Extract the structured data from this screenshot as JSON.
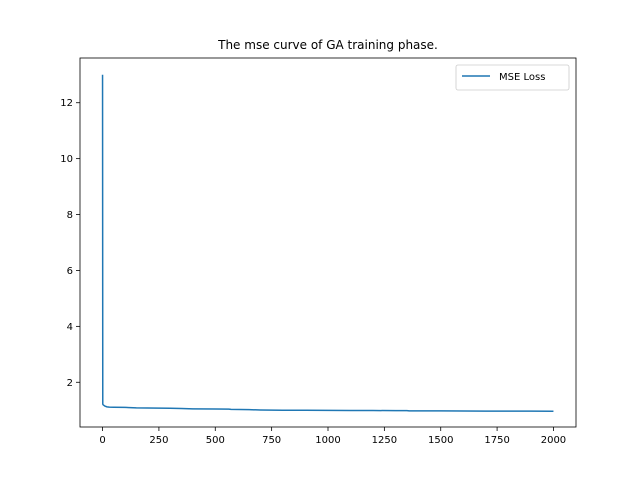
{
  "chart_data": {
    "type": "line",
    "title": "The mse curve of GA training phase.",
    "xlabel": "",
    "ylabel": "",
    "xlim": [
      -100,
      2100
    ],
    "ylim": [
      0.4,
      13.6
    ],
    "xticks": [
      0,
      250,
      500,
      750,
      1000,
      1250,
      1500,
      1750,
      2000
    ],
    "yticks": [
      2,
      4,
      6,
      8,
      10,
      12
    ],
    "grid": false,
    "legend_position": "top-right",
    "colors": {
      "series": "#1f77b4",
      "axis": "#000000",
      "legend_border": "#cccccc"
    },
    "series": [
      {
        "name": "MSE Loss",
        "x": [
          0,
          1,
          2,
          5,
          10,
          20,
          30,
          50,
          100,
          150,
          200,
          250,
          300,
          350,
          400,
          500,
          560,
          570,
          650,
          700,
          750,
          800,
          900,
          1000,
          1100,
          1200,
          1300,
          1350,
          1360,
          1400,
          1500,
          1600,
          1700,
          1800,
          1900,
          2000
        ],
        "y": [
          13.0,
          1.22,
          1.2,
          1.18,
          1.15,
          1.12,
          1.11,
          1.105,
          1.1,
          1.085,
          1.08,
          1.075,
          1.07,
          1.06,
          1.05,
          1.045,
          1.04,
          1.03,
          1.02,
          1.01,
          1.005,
          1.0,
          1.0,
          0.995,
          0.99,
          0.99,
          0.985,
          0.985,
          0.975,
          0.975,
          0.975,
          0.972,
          0.97,
          0.97,
          0.968,
          0.965
        ]
      }
    ]
  }
}
